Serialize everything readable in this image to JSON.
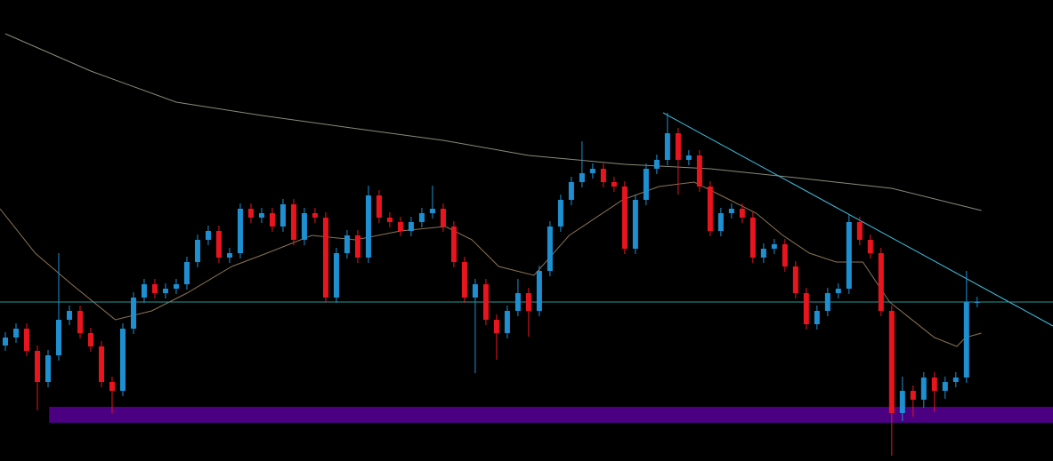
{
  "chart_data": {
    "type": "candlestick",
    "xlim": [
      -0.5,
      98.1
    ],
    "ylim": [
      0,
      519
    ],
    "up_color": "#1e8fd0",
    "down_color": "#e8141e",
    "background": "#000000",
    "open": [
      130,
      139,
      149,
      124,
      89,
      119,
      159,
      169,
      144,
      129,
      89,
      79,
      149,
      184,
      199,
      189,
      194,
      199,
      224,
      249,
      259,
      229,
      234,
      284,
      274,
      279,
      264,
      289,
      249,
      279,
      274,
      184,
      234,
      254,
      229,
      299,
      274,
      269,
      259,
      269,
      279,
      284,
      264,
      224,
      184,
      199,
      159,
      144,
      169,
      189,
      169,
      214,
      264,
      294,
      314,
      324,
      329,
      314,
      309,
      239,
      294,
      329,
      339,
      369,
      339,
      344,
      309,
      259,
      279,
      284,
      274,
      229,
      239,
      244,
      219,
      189,
      154,
      169,
      189,
      194,
      269,
      249,
      234,
      169,
      54,
      79,
      69,
      94,
      79,
      89,
      94,
      179
    ],
    "high": [
      145,
      155,
      155,
      130,
      125,
      234,
      175,
      175,
      150,
      135,
      95,
      155,
      190,
      205,
      205,
      200,
      205,
      230,
      255,
      265,
      265,
      240,
      290,
      290,
      285,
      285,
      295,
      295,
      285,
      285,
      280,
      240,
      260,
      260,
      310,
      305,
      280,
      275,
      275,
      285,
      310,
      290,
      270,
      230,
      205,
      205,
      165,
      175,
      205,
      195,
      220,
      270,
      300,
      320,
      360,
      335,
      335,
      320,
      315,
      300,
      335,
      345,
      392,
      375,
      350,
      350,
      315,
      285,
      290,
      290,
      280,
      245,
      250,
      250,
      225,
      195,
      175,
      195,
      200,
      277,
      275,
      255,
      240,
      175,
      95,
      85,
      100,
      100,
      95,
      100,
      214,
      185
    ],
    "low": [
      124,
      133,
      118,
      57,
      83,
      113,
      153,
      138,
      123,
      83,
      54,
      73,
      143,
      178,
      183,
      183,
      188,
      193,
      218,
      243,
      223,
      223,
      228,
      268,
      268,
      258,
      258,
      243,
      243,
      268,
      178,
      178,
      228,
      223,
      223,
      268,
      263,
      253,
      253,
      263,
      273,
      258,
      218,
      178,
      99,
      153,
      114,
      138,
      163,
      140,
      163,
      208,
      258,
      288,
      308,
      318,
      308,
      303,
      233,
      233,
      288,
      323,
      333,
      300,
      333,
      303,
      253,
      253,
      273,
      268,
      223,
      223,
      233,
      213,
      183,
      148,
      148,
      163,
      183,
      188,
      243,
      228,
      163,
      6,
      45,
      50,
      60,
      55,
      70,
      83,
      88,
      173
    ],
    "close": [
      139,
      149,
      124,
      89,
      119,
      159,
      169,
      144,
      129,
      89,
      79,
      149,
      184,
      199,
      189,
      194,
      199,
      224,
      249,
      259,
      229,
      234,
      284,
      274,
      279,
      264,
      289,
      249,
      279,
      274,
      184,
      234,
      254,
      229,
      299,
      274,
      269,
      259,
      269,
      279,
      284,
      264,
      224,
      184,
      199,
      159,
      144,
      169,
      189,
      169,
      214,
      264,
      294,
      314,
      324,
      329,
      314,
      309,
      239,
      294,
      329,
      339,
      369,
      339,
      344,
      309,
      259,
      279,
      284,
      274,
      229,
      239,
      244,
      219,
      189,
      154,
      169,
      189,
      194,
      269,
      249,
      234,
      169,
      54,
      79,
      69,
      94,
      79,
      89,
      94,
      179,
      179
    ],
    "lines": [
      {
        "color": "#8a8a7a",
        "x": [
          0,
          8,
          16,
          24,
          33,
          41,
          49,
          58,
          66,
          74,
          83,
          91.4
        ],
        "values": [
          481,
          439,
          404,
          389,
          374,
          361,
          344,
          334,
          329,
          319,
          307,
          282
        ]
      },
      {
        "color": "#8b7355",
        "x": [
          -0.5,
          2.8,
          6.2,
          10.3,
          13.7,
          17,
          21.2,
          24.5,
          28.7,
          32.8,
          37,
          41.2,
          43.7,
          46.2,
          49.5,
          52.8,
          57.8,
          61.2,
          64.5,
          67,
          70.3,
          72.8,
          75.3,
          77.8,
          80.3,
          82.8,
          87,
          89.1,
          89.9,
          91.4
        ],
        "values": [
          284,
          234,
          199,
          159,
          169,
          189,
          219,
          234,
          254,
          249,
          259,
          264,
          249,
          219,
          209,
          254,
          294,
          309,
          314,
          299,
          279,
          254,
          234,
          224,
          224,
          179,
          139,
          129,
          139,
          144
        ]
      },
      {
        "color": "#3fc0e0",
        "x": [
          61.6,
          98.1
        ],
        "values": [
          392,
          152
        ]
      },
      {
        "color": "#2a9a9a",
        "x": [
          -0.5,
          98.1
        ],
        "values": [
          179,
          179
        ]
      }
    ],
    "zone": {
      "color": "#4b0082",
      "x": [
        4.1,
        98.1
      ],
      "values": [
        61,
        43
      ]
    }
  }
}
